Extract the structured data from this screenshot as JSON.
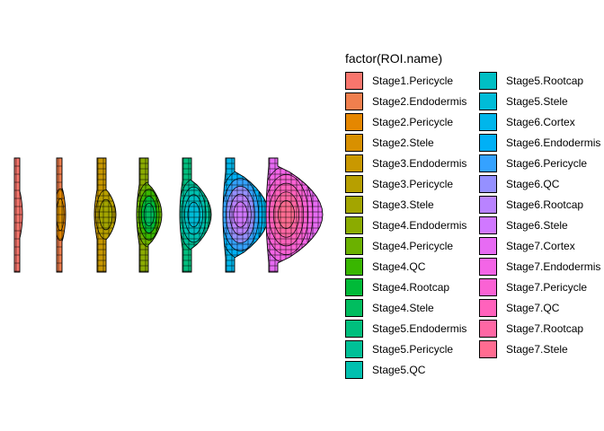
{
  "chart_data": {
    "type": "other",
    "title": "",
    "xlabel": "",
    "ylabel": "",
    "grid": false,
    "legend": {
      "title": "factor(ROI.name)",
      "position": "right",
      "columns": 2,
      "entries": [
        {
          "label": "Stage1.Pericycle",
          "color": "#F8766D"
        },
        {
          "label": "Stage2.Endodermis",
          "color": "#F07F4E"
        },
        {
          "label": "Stage2.Pericycle",
          "color": "#E58700"
        },
        {
          "label": "Stage2.Stele",
          "color": "#D89000"
        },
        {
          "label": "Stage3.Endodermis",
          "color": "#C99800"
        },
        {
          "label": "Stage3.Pericycle",
          "color": "#B79F00"
        },
        {
          "label": "Stage3.Stele",
          "color": "#A3A500"
        },
        {
          "label": "Stage4.Endodermis",
          "color": "#8BAB00"
        },
        {
          "label": "Stage4.Pericycle",
          "color": "#6BB100"
        },
        {
          "label": "Stage4.QC",
          "color": "#39B600"
        },
        {
          "label": "Stage4.Rootcap",
          "color": "#00BA38"
        },
        {
          "label": "Stage4.Stele",
          "color": "#00BD5F"
        },
        {
          "label": "Stage5.Endodermis",
          "color": "#00BF7D"
        },
        {
          "label": "Stage5.Pericycle",
          "color": "#00C097"
        },
        {
          "label": "Stage5.QC",
          "color": "#00C0AF"
        },
        {
          "label": "Stage5.Rootcap",
          "color": "#00BFC4"
        },
        {
          "label": "Stage5.Stele",
          "color": "#00BCD8"
        },
        {
          "label": "Stage6.Cortex",
          "color": "#00B6EB"
        },
        {
          "label": "Stage6.Endodermis",
          "color": "#00B0F6"
        },
        {
          "label": "Stage6.Pericycle",
          "color": "#35A2FF"
        },
        {
          "label": "Stage6.QC",
          "color": "#9590FF"
        },
        {
          "label": "Stage6.Rootcap",
          "color": "#B983FF"
        },
        {
          "label": "Stage6.Stele",
          "color": "#D078FF"
        },
        {
          "label": "Stage7.Cortex",
          "color": "#E76BF3"
        },
        {
          "label": "Stage7.Endodermis",
          "color": "#F365E6"
        },
        {
          "label": "Stage7.Pericycle",
          "color": "#FA62D4"
        },
        {
          "label": "Stage7.QC",
          "color": "#FF62BC"
        },
        {
          "label": "Stage7.Rootcap",
          "color": "#FF67A4"
        },
        {
          "label": "Stage7.Stele",
          "color": "#FF6C91"
        }
      ]
    },
    "primordia": [
      {
        "stage": 1,
        "regions": [
          "Stage1.Pericycle"
        ]
      },
      {
        "stage": 2,
        "regions": [
          "Stage2.Endodermis",
          "Stage2.Pericycle",
          "Stage2.Stele"
        ]
      },
      {
        "stage": 3,
        "regions": [
          "Stage3.Endodermis",
          "Stage3.Pericycle",
          "Stage3.Stele"
        ]
      },
      {
        "stage": 4,
        "regions": [
          "Stage4.Endodermis",
          "Stage4.Pericycle",
          "Stage4.QC",
          "Stage4.Rootcap",
          "Stage4.Stele"
        ]
      },
      {
        "stage": 5,
        "regions": [
          "Stage5.Endodermis",
          "Stage5.Pericycle",
          "Stage5.QC",
          "Stage5.Rootcap",
          "Stage5.Stele"
        ]
      },
      {
        "stage": 6,
        "regions": [
          "Stage6.Cortex",
          "Stage6.Endodermis",
          "Stage6.Pericycle",
          "Stage6.QC",
          "Stage6.Rootcap",
          "Stage6.Stele"
        ]
      },
      {
        "stage": 7,
        "regions": [
          "Stage7.Cortex",
          "Stage7.Endodermis",
          "Stage7.Pericycle",
          "Stage7.QC",
          "Stage7.Rootcap",
          "Stage7.Stele"
        ]
      }
    ]
  }
}
